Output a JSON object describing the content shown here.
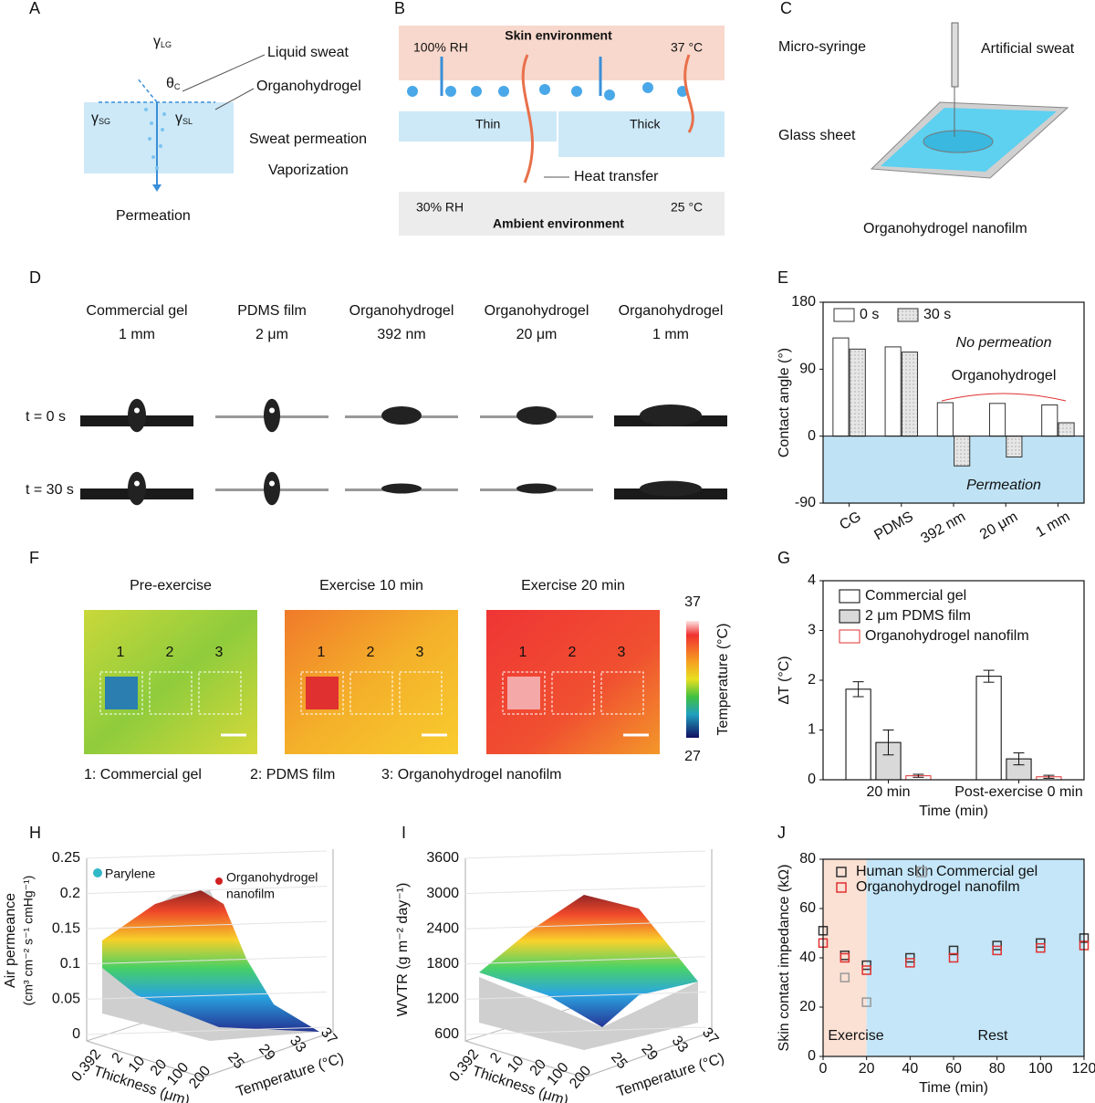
{
  "panels": {
    "A": {
      "letter": "A",
      "symbols": [
        {
          "symbol": "γ",
          "sub": "LG"
        },
        {
          "symbol": "θ",
          "sub": "C"
        },
        {
          "symbol": "γ",
          "sub": "SG"
        },
        {
          "symbol": "γ",
          "sub": "SL"
        }
      ],
      "labels": [
        "Liquid sweat",
        "Organohydrogel",
        "Sweat permeation",
        "Vaporization",
        "Permeation"
      ]
    },
    "B": {
      "letter": "B",
      "skin": "Skin environment",
      "ambient": "Ambient environment",
      "rh_top": "100% RH",
      "temp_top": "37 °C",
      "rh_bottom": "30% RH",
      "temp_bottom": "25 °C",
      "thin": "Thin",
      "thick": "Thick",
      "heat": "Heat transfer"
    },
    "C": {
      "letter": "C",
      "labels": [
        "Micro-syringe",
        "Artificial sweat",
        "Glass sheet",
        "Organohydrogel nanofilm"
      ]
    },
    "D": {
      "letter": "D",
      "samples": [
        {
          "name": "Commercial gel",
          "size": "1 mm"
        },
        {
          "name": "PDMS film",
          "size": "2 μm"
        },
        {
          "name": "Organohydrogel",
          "size": "392 nm"
        },
        {
          "name": "Organohydrogel",
          "size": "20 μm"
        },
        {
          "name": "Organohydrogel",
          "size": "1 mm"
        }
      ],
      "times": [
        "t = 0 s",
        "t = 30 s"
      ]
    },
    "F": {
      "letter": "F",
      "titles": [
        "Pre-exercise",
        "Exercise 10 min",
        "Exercise 20 min"
      ],
      "regions": [
        "1",
        "2",
        "3"
      ],
      "legend": [
        "1: Commercial gel",
        "2: PDMS film",
        "3: Organohydrogel nanofilm"
      ],
      "colorbar": {
        "label": "Temperature (°C)",
        "range": [
          27,
          37
        ]
      }
    },
    "H": {
      "letter": "H",
      "legend": [
        "Parylene",
        "Organohydrogel",
        "nanofilm"
      ],
      "z_label": "Air permeance",
      "z_unit": "(cm³ cm⁻² s⁻¹ cmHg⁻¹)",
      "zticks": [
        0,
        0.05,
        0.1,
        0.15,
        0.2,
        0.25
      ],
      "x_label": "Thickness (μm)",
      "xticks": [
        0.392,
        2,
        10,
        20,
        100,
        200
      ],
      "y_label": "Temperature (°C)",
      "yticks": [
        25,
        29,
        33,
        37
      ]
    },
    "I": {
      "letter": "I",
      "z_label": "WVTR (g m⁻² day⁻¹)",
      "zticks": [
        600,
        1200,
        1800,
        2400,
        3000,
        3600
      ],
      "x_label": "Thickness (μm)",
      "xticks": [
        0.392,
        2,
        10,
        20,
        100,
        200
      ],
      "y_label": "Temperature (°C)",
      "yticks": [
        25,
        29,
        33,
        37
      ]
    }
  },
  "chart_data": [
    {
      "type": "bar",
      "panel": "E",
      "y_label": "Contact angle (°)",
      "categories": [
        "CG",
        "PDMS",
        "392 nm",
        "20 μm",
        "1 mm"
      ],
      "series": [
        {
          "name": "0 s",
          "color": "#ffffff",
          "values": [
            132,
            120,
            45,
            44,
            42
          ]
        },
        {
          "name": "30 s",
          "color": "#dcdcdc",
          "values": [
            117,
            113,
            -40,
            -28,
            18
          ]
        }
      ],
      "annotations": [
        "No permeation",
        "Organohydrogel",
        "Permeation"
      ],
      "ylim": [
        -90,
        180
      ],
      "yticks": [
        -90,
        0,
        90,
        180
      ]
    },
    {
      "type": "bar",
      "panel": "G",
      "y_label": "ΔT (°C)",
      "x_label": "Time (min)",
      "categories": [
        "20 min",
        "Post-exercise 0 min"
      ],
      "series": [
        {
          "name": "Commercial gel",
          "color": "#ffffff",
          "edgecolor": "#000000",
          "values": [
            1.82,
            2.08
          ],
          "errors": [
            0.15,
            0.12
          ]
        },
        {
          "name": "2 μm PDMS film",
          "color": "#d9d9d9",
          "edgecolor": "#000000",
          "values": [
            0.75,
            0.42
          ],
          "errors": [
            0.25,
            0.12
          ]
        },
        {
          "name": "Organohydrogel nanofilm",
          "color": "#ffffff",
          "edgecolor": "#e03030",
          "values": [
            0.08,
            0.06
          ],
          "errors": [
            0.03,
            0.03
          ]
        }
      ],
      "ylim": [
        0,
        4
      ],
      "yticks": [
        0,
        1,
        2,
        3,
        4
      ]
    },
    {
      "type": "scatter",
      "panel": "J",
      "y_label": "Skin contact impedance (kΩ)",
      "x_label": "Time (min)",
      "x": [
        0,
        10,
        20,
        40,
        60,
        80,
        100,
        120
      ],
      "series": [
        {
          "name": "Human skin",
          "color": "#333333",
          "values": [
            51,
            41,
            37,
            40,
            43,
            45,
            46,
            48
          ]
        },
        {
          "name": "Commercial gel",
          "color": "#999999",
          "values": [
            null,
            32,
            22,
            null,
            null,
            null,
            null,
            null
          ]
        },
        {
          "name": "Organohydrogel nanofilm",
          "color": "#e03030",
          "values": [
            46,
            40,
            35,
            38,
            40,
            43,
            44,
            45
          ]
        }
      ],
      "annotations": [
        "Exercise",
        "Rest"
      ],
      "xlim": [
        0,
        120
      ],
      "xticks": [
        0,
        20,
        40,
        60,
        80,
        100,
        120
      ],
      "ylim": [
        0,
        80
      ],
      "yticks": [
        0,
        20,
        40,
        60,
        80
      ]
    }
  ]
}
